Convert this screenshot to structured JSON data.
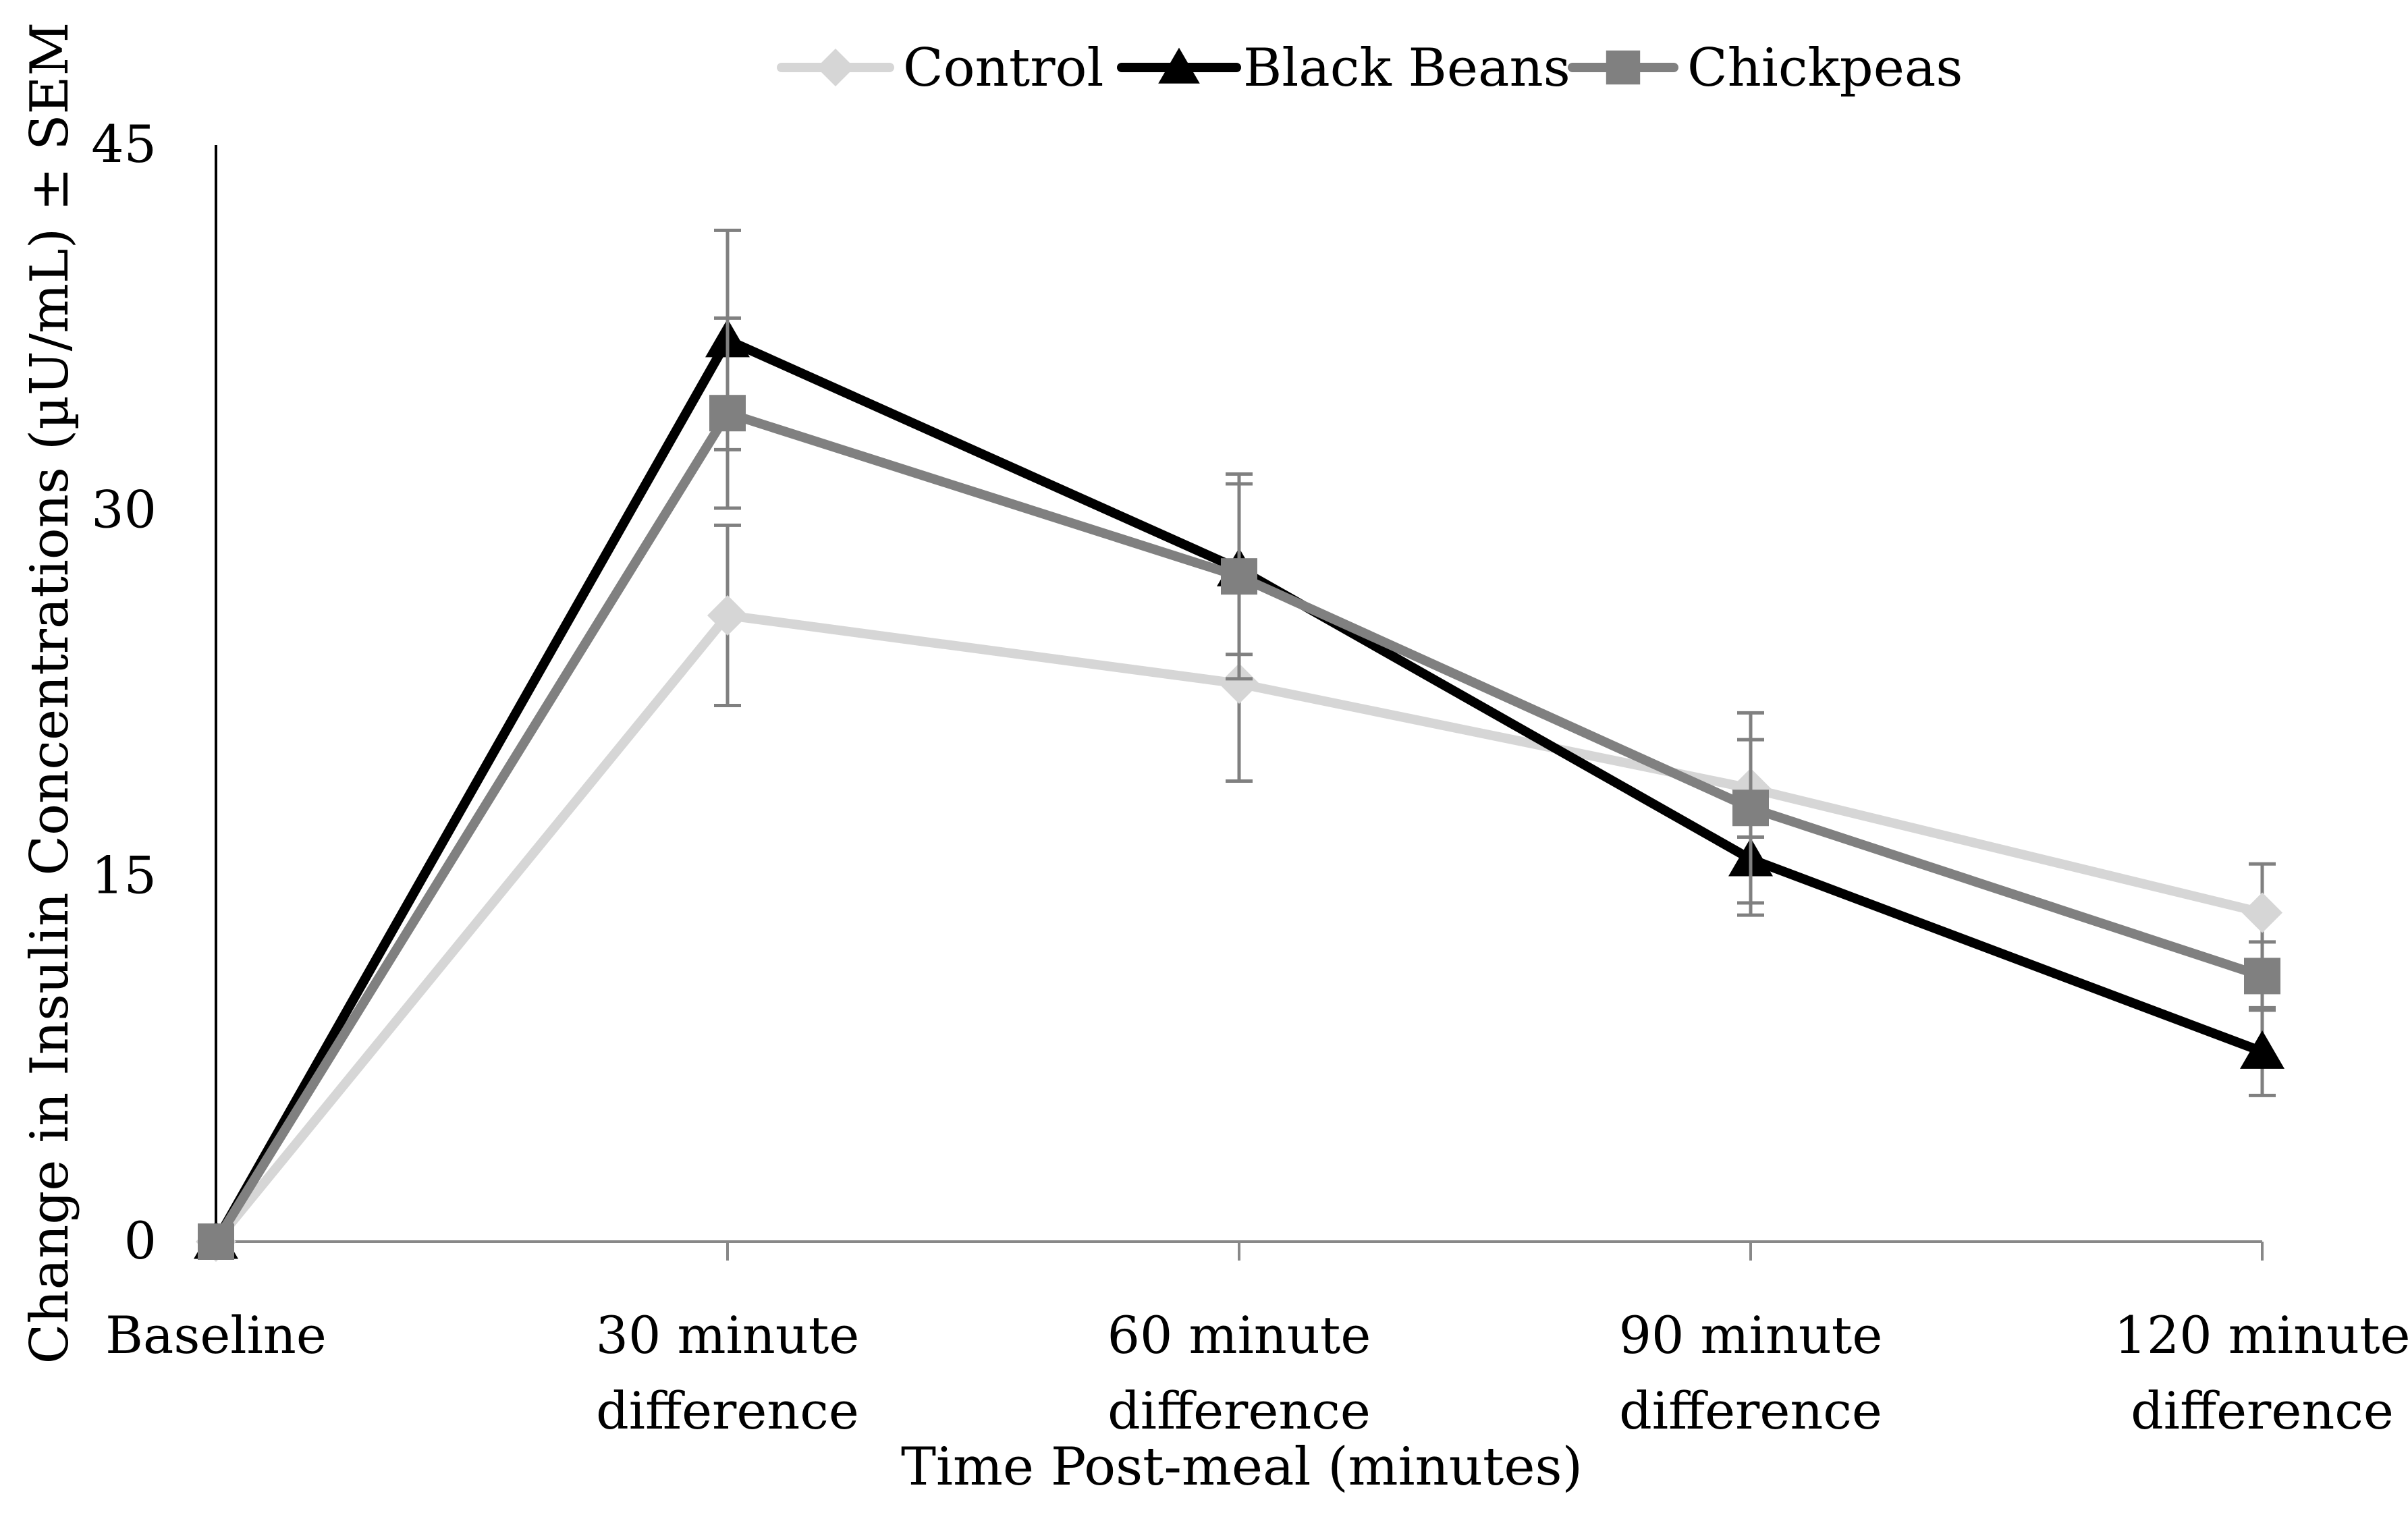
{
  "chart_data": {
    "type": "line",
    "title": "",
    "xlabel": "Time Post-meal (minutes)",
    "ylabel": "Change in Insulin Concentrations (µU/mL) ± SEM",
    "categories": [
      [
        "Baseline"
      ],
      [
        "30 minute",
        "difference"
      ],
      [
        "60 minute",
        "difference"
      ],
      [
        "90 minute",
        "difference"
      ],
      [
        "120 minute",
        "difference"
      ]
    ],
    "ylim": [
      0,
      45
    ],
    "yticks": [
      "0",
      "15",
      "30",
      "45"
    ],
    "legend_position": "top-center",
    "grid": false,
    "series": [
      {
        "name": "Control",
        "color": "#d6d6d6",
        "marker": "diamond",
        "values": [
          0,
          25.7,
          22.9,
          18.6,
          13.5
        ],
        "errors": [
          0,
          3.7,
          4.0,
          2.0,
          2.0
        ]
      },
      {
        "name": "Black Beans",
        "color": "#000000",
        "marker": "triangle",
        "values": [
          0,
          37.0,
          27.6,
          15.7,
          7.8
        ],
        "errors": [
          0,
          4.5,
          3.5,
          2.3,
          1.8
        ]
      },
      {
        "name": "Chickpeas",
        "color": "#808080",
        "marker": "square",
        "values": [
          0,
          34.0,
          27.3,
          17.8,
          10.9
        ],
        "errors": [
          0,
          3.9,
          4.2,
          3.9,
          1.4
        ]
      }
    ]
  }
}
